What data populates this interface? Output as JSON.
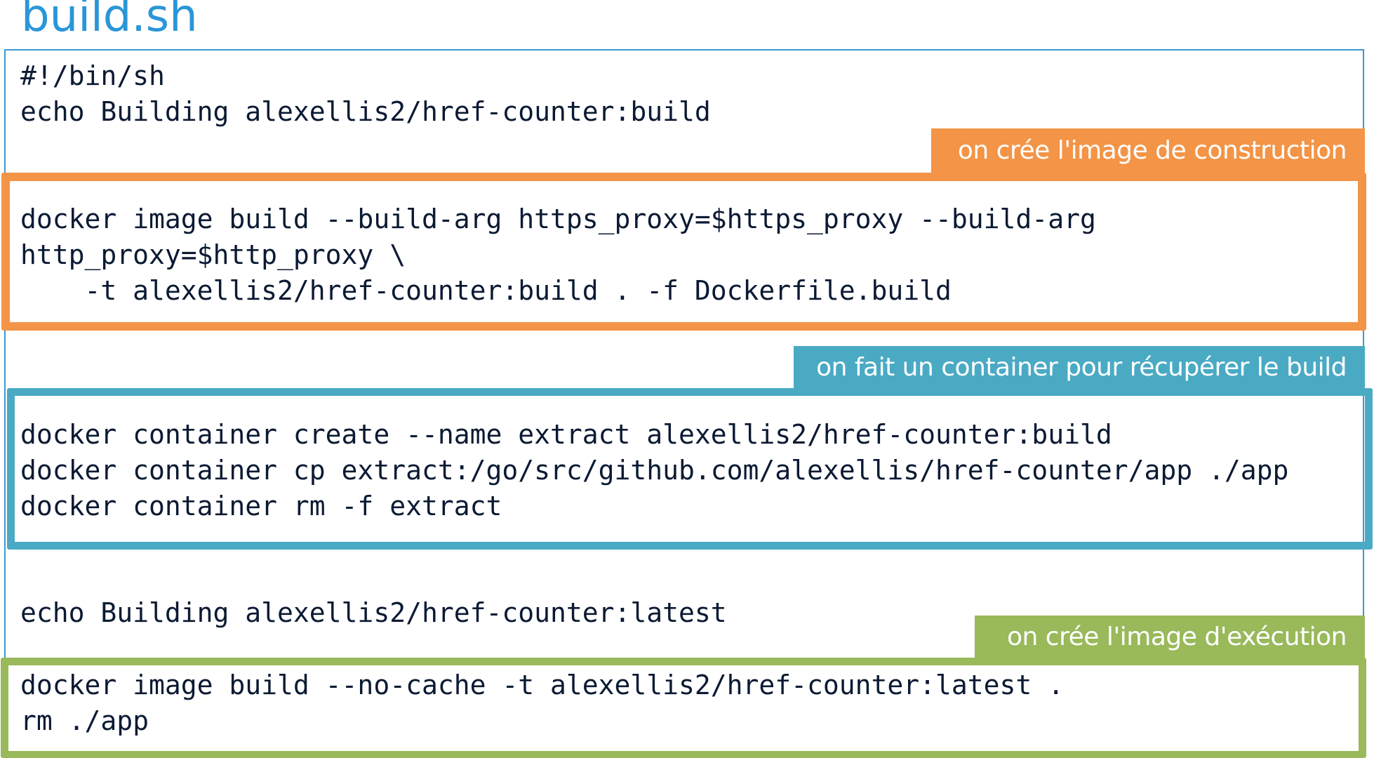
{
  "title": "build.sh",
  "code": {
    "intro": "#!/bin/sh\necho Building alexellis2/href-counter:build",
    "build_image": "docker image build --build-arg https_proxy=$https_proxy --build-arg\nhttp_proxy=$http_proxy \\\n    -t alexellis2/href-counter:build . -f Dockerfile.build",
    "extract": "docker container create --name extract alexellis2/href-counter:build\ndocker container cp extract:/go/src/github.com/alexellis/href-counter/app ./app\ndocker container rm -f extract",
    "echo_latest": "echo Building alexellis2/href-counter:latest",
    "final": "docker image build --no-cache -t alexellis2/href-counter:latest .\nrm ./app"
  },
  "annotations": {
    "build_image": "on crée l'image de construction",
    "extract": "on fait un container pour récupérer le build",
    "final": "on crée l'image d'exécution"
  },
  "colors": {
    "title": "#2a96d8",
    "frame": "#3b99d4",
    "orange": "#f39446",
    "teal": "#4aaac4",
    "green": "#99b95a",
    "code_text": "#0b1a33"
  }
}
